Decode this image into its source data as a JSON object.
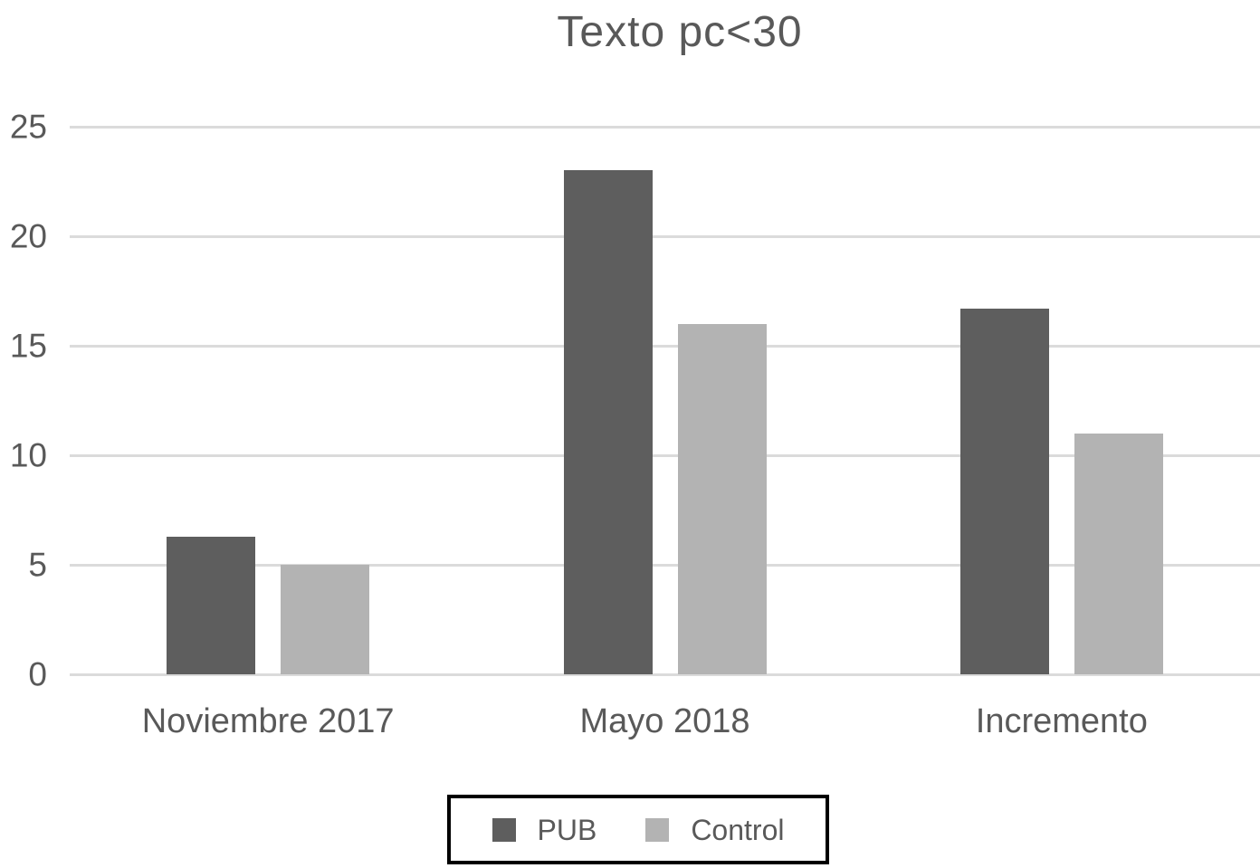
{
  "page": {
    "background": "#ffffff"
  },
  "chart_data": {
    "type": "bar",
    "title": "Texto pc<30",
    "categories": [
      "Noviembre 2017",
      "Mayo 2018",
      "Incremento"
    ],
    "series": [
      {
        "name": "PUB",
        "color": "#5E5E5E",
        "values": [
          6.3,
          23,
          16.7
        ]
      },
      {
        "name": "Control",
        "color": "#B3B3B3",
        "values": [
          5,
          16,
          11
        ]
      }
    ],
    "y_ticks": [
      0,
      5,
      10,
      15,
      20,
      25
    ],
    "ylim": [
      0,
      25
    ],
    "xlabel": "",
    "ylabel": "",
    "grid": true,
    "gridline_color": "#DBDBDB",
    "text_color": "#595959",
    "legend_position": "bottom",
    "legend_border_color": "#000000"
  }
}
